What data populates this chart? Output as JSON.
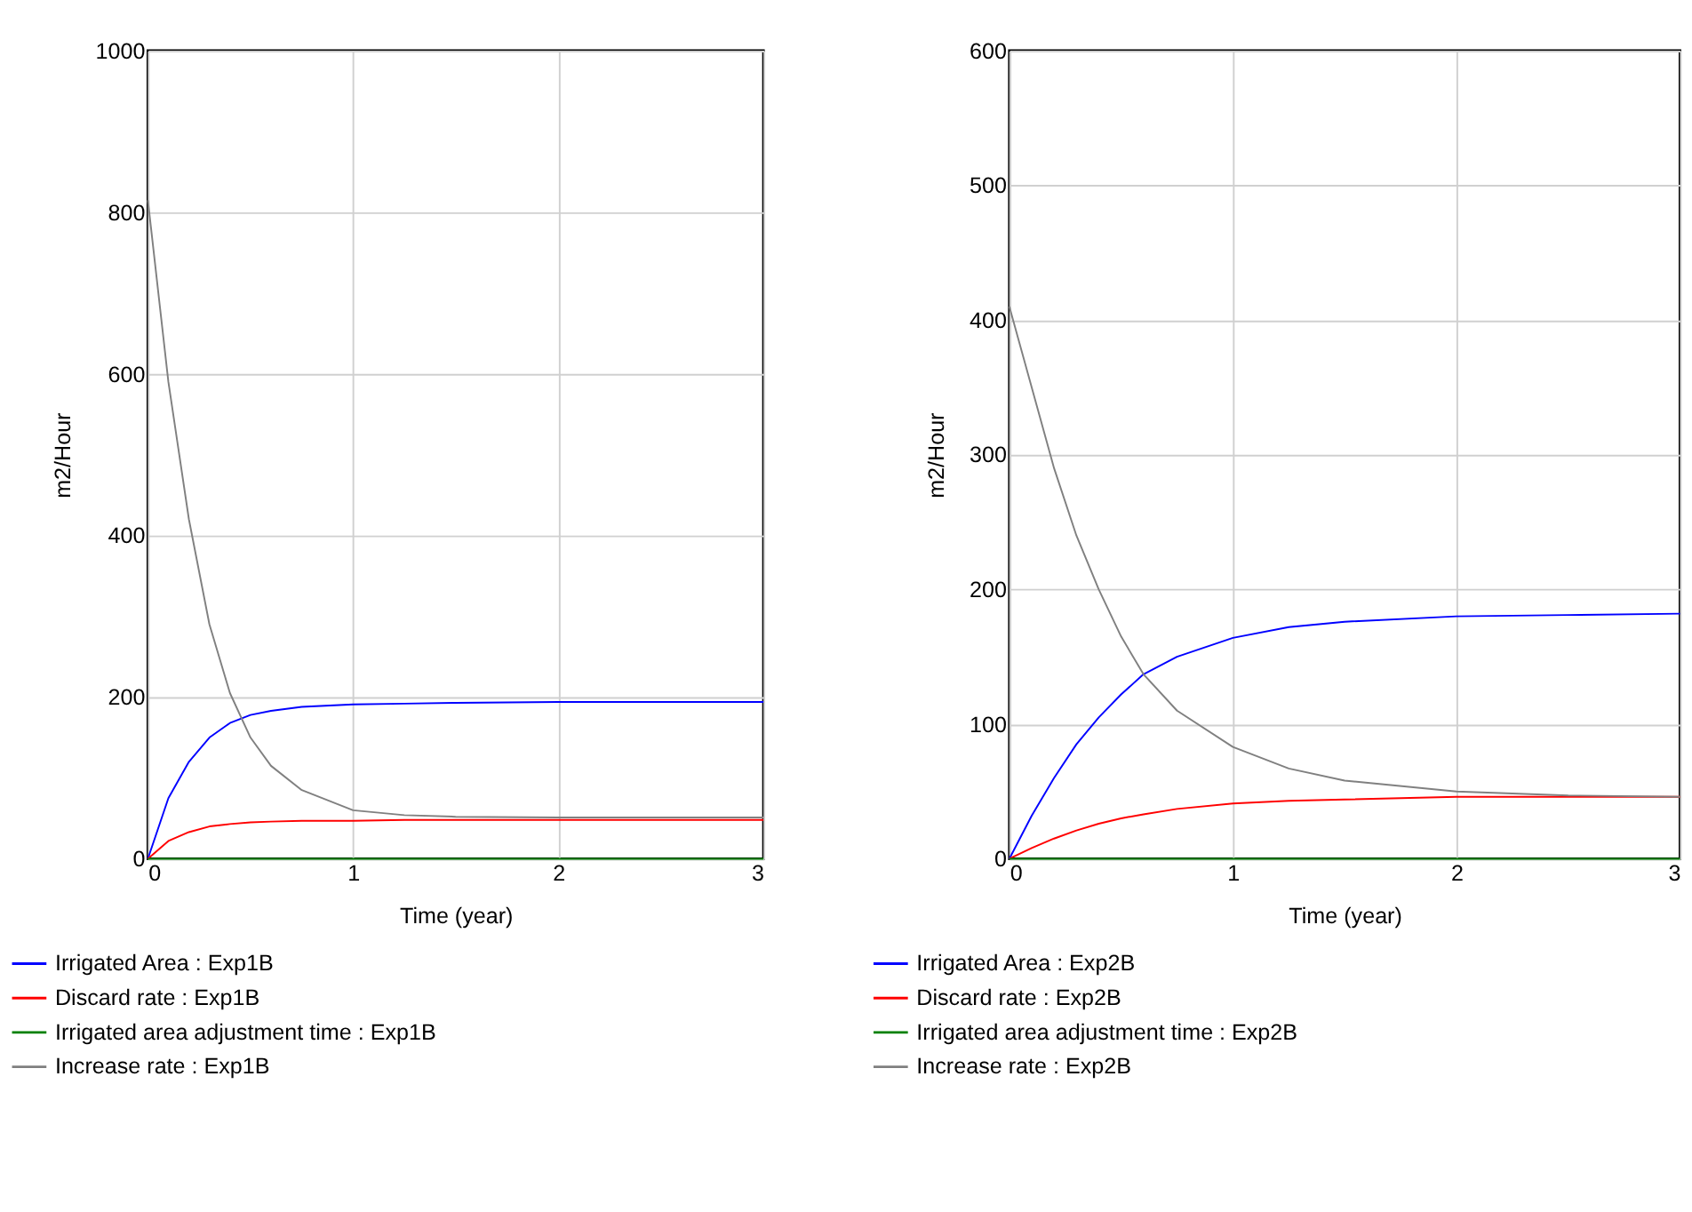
{
  "chart_data": [
    {
      "type": "line",
      "xlabel": "Time (year)",
      "ylabel": "m2/Hour",
      "xlim": [
        0,
        3
      ],
      "xticks": [
        0,
        1,
        2,
        3
      ],
      "ylim": [
        0,
        1000
      ],
      "yticks": [
        0,
        200,
        400,
        600,
        800,
        1000
      ],
      "grid": true,
      "legend": "bottom left",
      "line_style": "solid",
      "x": [
        0,
        0.1,
        0.2,
        0.3,
        0.4,
        0.5,
        0.6,
        0.75,
        1,
        1.25,
        1.5,
        2,
        2.5,
        3
      ],
      "series": [
        {
          "name": "Irrigated Area : Exp1B",
          "color": "#0000ff",
          "values": [
            0,
            75,
            120,
            150,
            168,
            178,
            183,
            188,
            191,
            192,
            193,
            194,
            194,
            194
          ]
        },
        {
          "name": "Discard rate : Exp1B",
          "color": "#ff0000",
          "values": [
            0,
            22,
            33,
            40,
            43,
            45,
            46,
            47,
            47,
            48,
            48,
            48,
            48,
            48
          ]
        },
        {
          "name": "Irrigated area adjustment time : Exp1B",
          "color": "#008000",
          "values": [
            0,
            0,
            0,
            0,
            0,
            0,
            0,
            0,
            0,
            0,
            0,
            0,
            0,
            0
          ]
        },
        {
          "name": "Increase rate : Exp1B",
          "color": "#808080",
          "values": [
            815,
            590,
            420,
            290,
            205,
            150,
            115,
            85,
            60,
            54,
            52,
            51,
            51,
            51
          ]
        }
      ]
    },
    {
      "type": "line",
      "xlabel": "Time (year)",
      "ylabel": "m2/Hour",
      "xlim": [
        0,
        3
      ],
      "xticks": [
        0,
        1,
        2,
        3
      ],
      "ylim": [
        0,
        600
      ],
      "yticks": [
        0,
        100,
        200,
        300,
        400,
        500,
        600
      ],
      "grid": true,
      "legend": "bottom left",
      "line_style": "solid",
      "x": [
        0,
        0.1,
        0.2,
        0.3,
        0.4,
        0.5,
        0.6,
        0.75,
        1,
        1.25,
        1.5,
        2,
        2.5,
        3
      ],
      "series": [
        {
          "name": "Irrigated Area : Exp2B",
          "color": "#0000ff",
          "values": [
            0,
            32,
            60,
            85,
            105,
            122,
            137,
            150,
            164,
            172,
            176,
            180,
            181,
            182
          ]
        },
        {
          "name": "Discard rate : Exp2B",
          "color": "#ff0000",
          "values": [
            0,
            8,
            15,
            21,
            26,
            30,
            33,
            37,
            41,
            43,
            44,
            46,
            46,
            46
          ]
        },
        {
          "name": "Irrigated area adjustment time : Exp2B",
          "color": "#008000",
          "values": [
            0,
            0,
            0,
            0,
            0,
            0,
            0,
            0,
            0,
            0,
            0,
            0,
            0,
            0
          ]
        },
        {
          "name": "Increase rate : Exp2B",
          "color": "#808080",
          "values": [
            410,
            350,
            290,
            240,
            200,
            165,
            137,
            110,
            83,
            67,
            58,
            50,
            47,
            46
          ]
        }
      ]
    }
  ]
}
